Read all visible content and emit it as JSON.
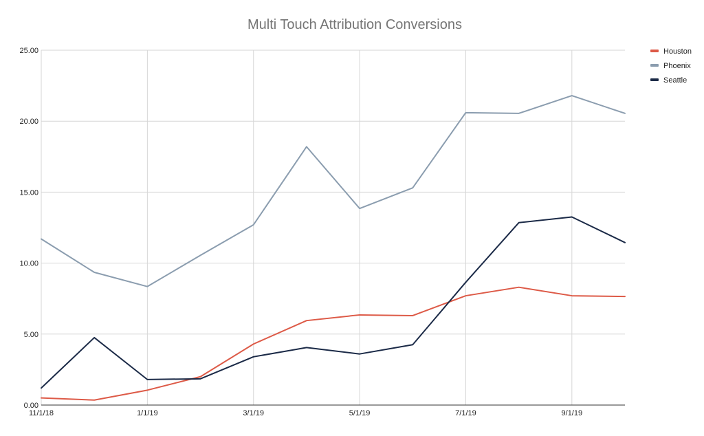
{
  "chart_data": {
    "type": "line",
    "title": "Multi Touch Attribution Conversions",
    "xlabel": "",
    "ylabel": "",
    "x": [
      "11/1/18",
      "12/1/18",
      "1/1/19",
      "2/1/19",
      "3/1/19",
      "4/1/19",
      "5/1/19",
      "6/1/19",
      "7/1/19",
      "8/1/19",
      "9/1/19",
      "10/1/19"
    ],
    "x_tick_labels": [
      "11/1/18",
      "1/1/19",
      "3/1/19",
      "5/1/19",
      "7/1/19",
      "9/1/19"
    ],
    "ylim": [
      0,
      25
    ],
    "y_tick_labels": [
      "0.00",
      "5.00",
      "10.00",
      "15.00",
      "20.00",
      "25.00"
    ],
    "grid": true,
    "legend_position": "top-right",
    "series": [
      {
        "name": "Houston",
        "color": "#dd5a47",
        "values": [
          0.5,
          0.35,
          1.05,
          2.0,
          4.3,
          5.95,
          6.35,
          6.3,
          7.7,
          8.3,
          7.7,
          7.65
        ]
      },
      {
        "name": "Phoenix",
        "color": "#8b9daf",
        "values": [
          11.7,
          9.35,
          8.35,
          10.55,
          12.7,
          18.2,
          13.85,
          15.3,
          20.6,
          20.55,
          21.8,
          20.55
        ]
      },
      {
        "name": "Seattle",
        "color": "#1b2a47",
        "values": [
          1.2,
          4.75,
          1.8,
          1.85,
          3.4,
          4.05,
          3.6,
          4.25,
          8.65,
          12.85,
          13.25,
          11.45
        ]
      }
    ]
  }
}
